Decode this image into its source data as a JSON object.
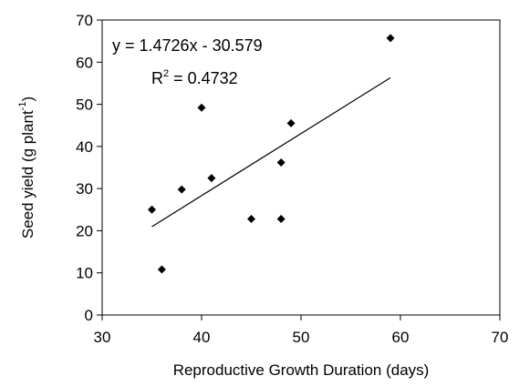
{
  "chart_data": {
    "type": "scatter",
    "title": "",
    "xlabel": "Reproductive Growth Duration (days)",
    "ylabel": {
      "main": "Seed yield (g plant",
      "sup": "-1",
      "close": ")"
    },
    "xlim": [
      30,
      70
    ],
    "ylim": [
      0,
      70
    ],
    "xticks": [
      "30",
      "40",
      "50",
      "60",
      "70"
    ],
    "yticks": [
      "0",
      "10",
      "20",
      "30",
      "40",
      "50",
      "60",
      "70"
    ],
    "grid": false,
    "legend": false,
    "marker": "diamond",
    "marker_color": "#000000",
    "points": [
      {
        "x": 35,
        "y": 25.0
      },
      {
        "x": 36,
        "y": 10.8
      },
      {
        "x": 38,
        "y": 29.8
      },
      {
        "x": 40,
        "y": 49.2
      },
      {
        "x": 41,
        "y": 32.5
      },
      {
        "x": 45,
        "y": 22.8
      },
      {
        "x": 48,
        "y": 36.2
      },
      {
        "x": 48,
        "y": 22.8
      },
      {
        "x": 49,
        "y": 45.5
      },
      {
        "x": 59,
        "y": 65.7
      }
    ],
    "trendline": {
      "slope": 1.4726,
      "intercept": -30.579,
      "x_range": [
        35,
        59
      ]
    },
    "annotations": {
      "equation": "y = 1.4726x - 30.579",
      "r2_main": "R",
      "r2_sup": "2",
      "r2_value": " = 0.4732"
    }
  }
}
